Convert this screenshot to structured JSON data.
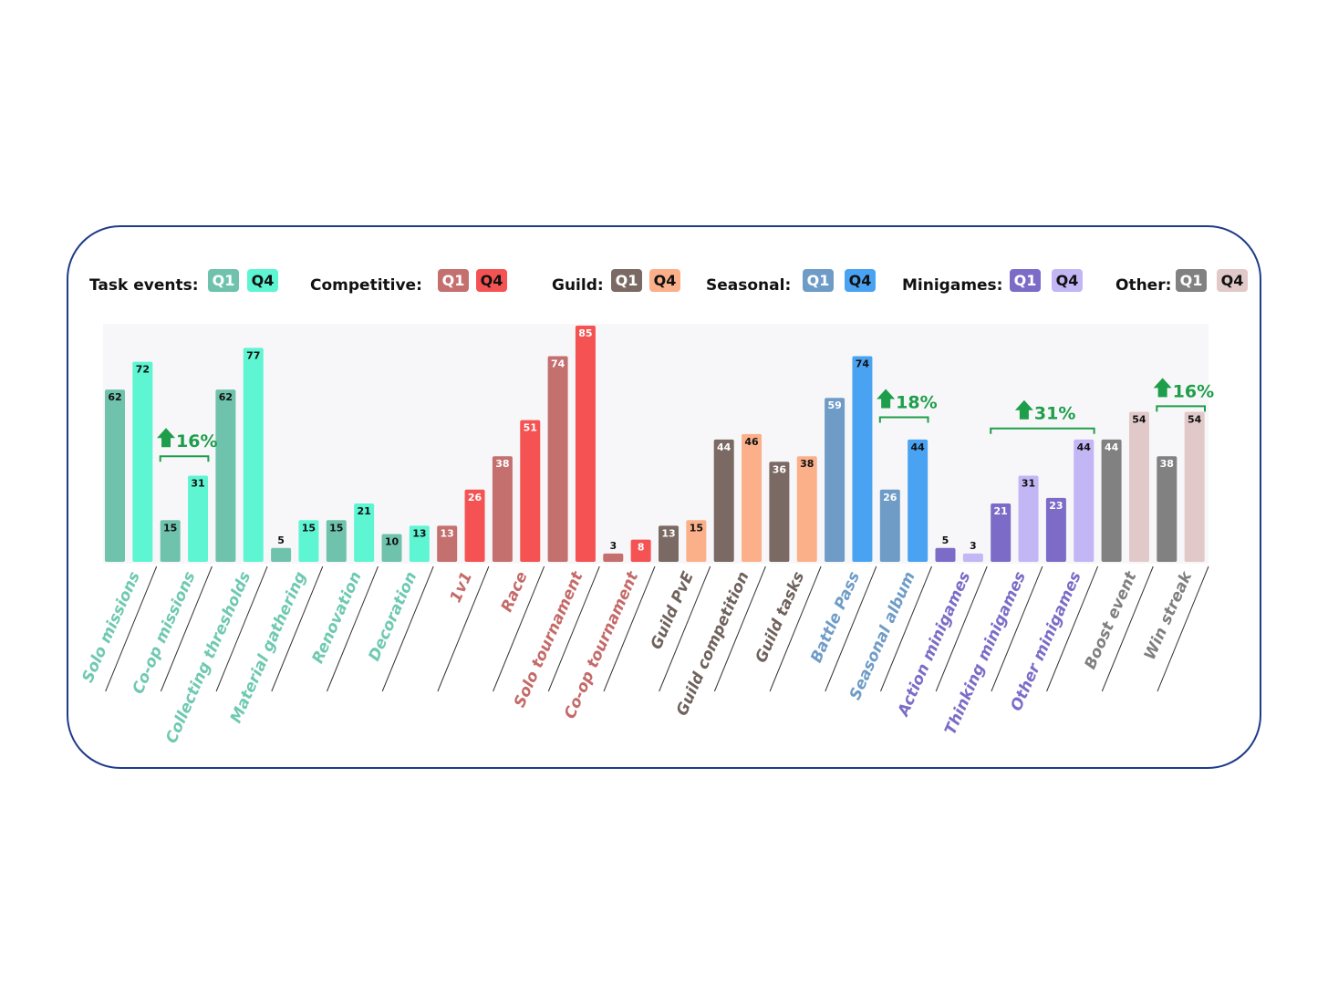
{
  "chart_data": {
    "type": "bar",
    "grid": false,
    "ylim": [
      0,
      85
    ],
    "legend_placement": "top",
    "groups": [
      {
        "name": "Task events:",
        "q1_label": "Q1",
        "q4_label": "Q4",
        "q1_color": "#6fc3ad",
        "q4_color": "#5ef5d3",
        "label_color": "#6fc9b0",
        "q1_text": "#111111",
        "q4_text": "#111111"
      },
      {
        "name": "Competitive:",
        "q1_label": "Q1",
        "q4_label": "Q4",
        "q1_color": "#c4706f",
        "q4_color": "#f55353",
        "label_color": "#c46a68",
        "q1_text": "#ffffff",
        "q4_text": "#ffffff"
      },
      {
        "name": "Guild:",
        "q1_label": "Q1",
        "q4_label": "Q4",
        "q1_color": "#7a6a63",
        "q4_color": "#fbb08a",
        "label_color": "#6f625c",
        "q1_text": "#ffffff",
        "q4_text": "#111111"
      },
      {
        "name": "Seasonal:",
        "q1_label": "Q1",
        "q4_label": "Q4",
        "q1_color": "#6f9cc7",
        "q4_color": "#4aa3f2",
        "label_color": "#6f9cc7",
        "q1_text": "#ffffff",
        "q4_text": "#111111"
      },
      {
        "name": "Minigames:",
        "q1_label": "Q1",
        "q4_label": "Q4",
        "q1_color": "#7c6cc7",
        "q4_color": "#c3b6f5",
        "label_color": "#7c6cc7",
        "q1_text": "#ffffff",
        "q4_text": "#111111"
      },
      {
        "name": "Other:",
        "q1_label": "Q1",
        "q4_label": "Q4",
        "q1_color": "#818181",
        "q4_color": "#e2c9c9",
        "label_color": "#7f7f7f",
        "q1_text": "#ffffff",
        "q4_text": "#111111"
      }
    ],
    "categories": [
      {
        "label": "Solo missions",
        "group": 0,
        "q1": 62,
        "q4": 72
      },
      {
        "label": "Co-op missions",
        "group": 0,
        "q1": 15,
        "q4": 31
      },
      {
        "label": "Collecting thresholds",
        "group": 0,
        "q1": 62,
        "q4": 77
      },
      {
        "label": "Material gathering",
        "group": 0,
        "q1": 5,
        "q4": 15
      },
      {
        "label": "Renovation",
        "group": 0,
        "q1": 15,
        "q4": 21
      },
      {
        "label": "Decoration",
        "group": 0,
        "q1": 10,
        "q4": 13
      },
      {
        "label": "1v1",
        "group": 1,
        "q1": 13,
        "q4": 26
      },
      {
        "label": "Race",
        "group": 1,
        "q1": 38,
        "q4": 51
      },
      {
        "label": "Solo tournament",
        "group": 1,
        "q1": 74,
        "q4": 85
      },
      {
        "label": "Co-op tournament",
        "group": 1,
        "q1": 3,
        "q4": 8
      },
      {
        "label": "Guild PvE",
        "group": 2,
        "q1": 13,
        "q4": 15
      },
      {
        "label": "Guild competition",
        "group": 2,
        "q1": 44,
        "q4": 46
      },
      {
        "label": "Guild tasks",
        "group": 2,
        "q1": 36,
        "q4": 38
      },
      {
        "label": "Battle Pass",
        "group": 3,
        "q1": 59,
        "q4": 74
      },
      {
        "label": "Seasonal album",
        "group": 3,
        "q1": 26,
        "q4": 44
      },
      {
        "label": "Action minigames",
        "group": 4,
        "q1": 5,
        "q4": 3
      },
      {
        "label": "Thinking minigames",
        "group": 4,
        "q1": 21,
        "q4": 31
      },
      {
        "label": "Other minigames",
        "group": 4,
        "q1": 23,
        "q4": 44
      },
      {
        "label": "Boost event",
        "group": 5,
        "q1": 44,
        "q4": 54
      },
      {
        "label": "Win streak",
        "group": 5,
        "q1": 38,
        "q4": 54
      }
    ],
    "annotations": [
      {
        "text": "16%",
        "from_category": 1,
        "to_category": 1,
        "above_value": 38
      },
      {
        "text": "18%",
        "from_category": 14,
        "to_category": 14,
        "above_value": 52
      },
      {
        "text": "31%",
        "from_category": 16,
        "to_category": 17,
        "above_value": 48
      },
      {
        "text": "16%",
        "from_category": 19,
        "to_category": 19,
        "above_value": 56
      }
    ],
    "annotation_color": "#1e9e4a",
    "frame_color": "#1f3b8a"
  }
}
